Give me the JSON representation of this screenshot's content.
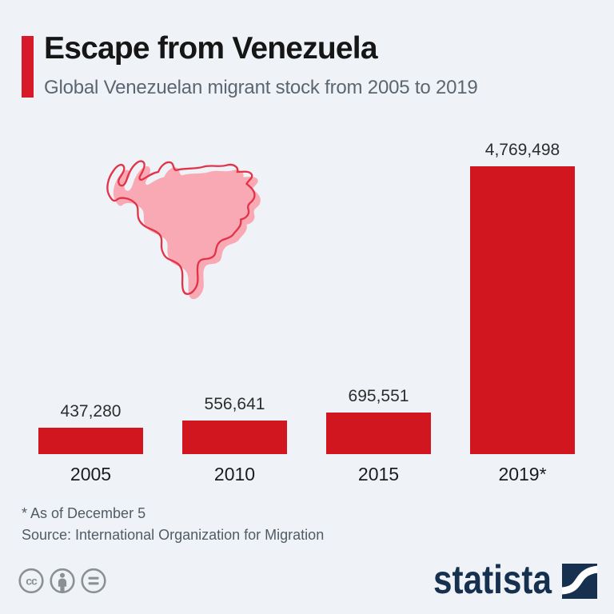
{
  "page": {
    "background_color": "#eff3f8"
  },
  "header": {
    "accent_color": "#d8192a",
    "title": "Escape from Venezuela",
    "subtitle": "Global Venezuelan migrant stock from 2005 to 2019"
  },
  "map": {
    "label": "venezuela-map",
    "fill_color": "#f9a9b4",
    "outline_color": "#e23449"
  },
  "chart_data": {
    "type": "bar",
    "categories": [
      "2005",
      "2010",
      "2015",
      "2019*"
    ],
    "values": [
      437280,
      556641,
      695551,
      4769498
    ],
    "value_labels": [
      "437,280",
      "556,641",
      "695,551",
      "4,769,498"
    ],
    "title": "Escape from Venezuela",
    "subtitle": "Global Venezuelan migrant stock from 2005 to 2019",
    "xlabel": "",
    "ylabel": "",
    "ylim": [
      0,
      4769498
    ],
    "bar_color": "#d2161f",
    "grid": false,
    "legend": false,
    "value_label_position": "above",
    "footnote_marker": "*"
  },
  "footer": {
    "footnote": "* As of December 5",
    "source": "Source: International Organization for Migration",
    "license_icon_color": "#8b9094",
    "license_icons": [
      {
        "name": "cc-icon",
        "text": "cc"
      },
      {
        "name": "attribution-icon"
      },
      {
        "name": "no-derivatives-icon"
      }
    ],
    "brand": {
      "name": "statista",
      "color": "#16304f"
    }
  }
}
